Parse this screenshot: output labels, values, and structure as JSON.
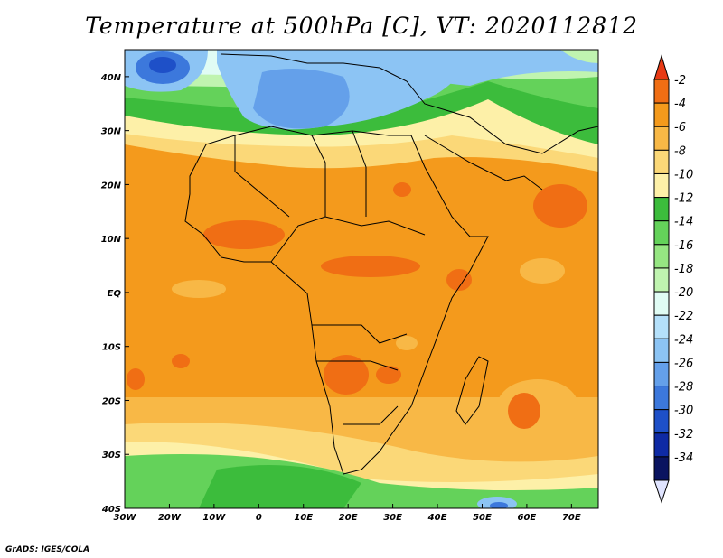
{
  "title": "Temperature at 500hPa [C], VT: 2020112812",
  "credit": "GrADS: IGES/COLA",
  "map": {
    "lon_range": [
      -30,
      76
    ],
    "lat_range": [
      -40,
      45
    ],
    "lon_ticks": [
      {
        "value": -30,
        "label": "30W"
      },
      {
        "value": -20,
        "label": "20W"
      },
      {
        "value": -10,
        "label": "10W"
      },
      {
        "value": 0,
        "label": "0"
      },
      {
        "value": 10,
        "label": "10E"
      },
      {
        "value": 20,
        "label": "20E"
      },
      {
        "value": 30,
        "label": "30E"
      },
      {
        "value": 40,
        "label": "40E"
      },
      {
        "value": 50,
        "label": "50E"
      },
      {
        "value": 60,
        "label": "60E"
      },
      {
        "value": 70,
        "label": "70E"
      }
    ],
    "lat_ticks": [
      {
        "value": 40,
        "label": "40N"
      },
      {
        "value": 30,
        "label": "30N"
      },
      {
        "value": 20,
        "label": "20N"
      },
      {
        "value": 10,
        "label": "10N"
      },
      {
        "value": 0,
        "label": "EQ"
      },
      {
        "value": -10,
        "label": "10S"
      },
      {
        "value": -20,
        "label": "20S"
      },
      {
        "value": -30,
        "label": "30S"
      },
      {
        "value": -40,
        "label": "40S"
      }
    ]
  },
  "colorbar": {
    "labels": [
      "-2",
      "-4",
      "-6",
      "-8",
      "-10",
      "-12",
      "-14",
      "-16",
      "-18",
      "-20",
      "-22",
      "-24",
      "-26",
      "-28",
      "-30",
      "-32",
      "-34"
    ],
    "colors": [
      "#e83a14",
      "#f06e14",
      "#f49a1c",
      "#f8b846",
      "#fbd878",
      "#fdf0a8",
      "#3cbc3c",
      "#64d25a",
      "#96e682",
      "#c0f4b0",
      "#e0fcf4",
      "#b4e0fa",
      "#8cc4f4",
      "#64a0ea",
      "#3c78dc",
      "#1e50c8",
      "#0e2aa4",
      "#0a1460"
    ],
    "over_color": "#e83a14",
    "under_color": "#e0e4ff"
  }
}
